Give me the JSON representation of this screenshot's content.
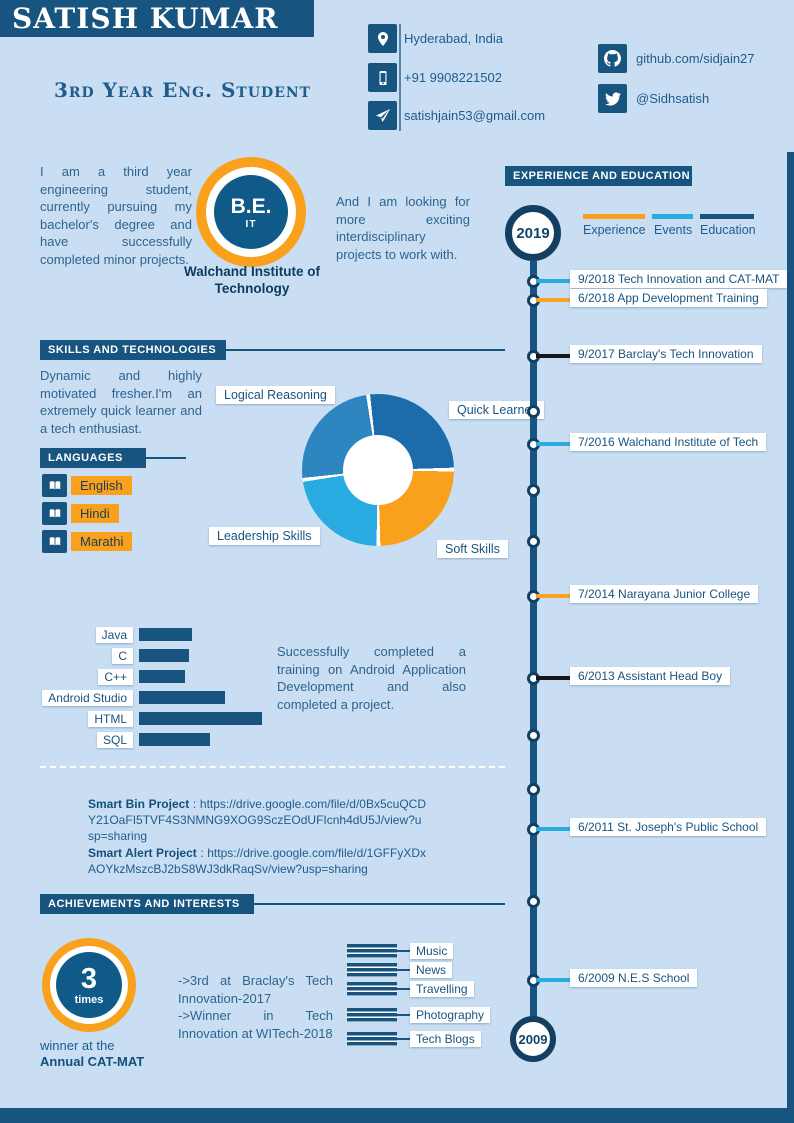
{
  "page": {
    "background": "#c9def2",
    "accent_dark": "#175480",
    "accent_orange": "#f9a11c",
    "accent_cyan": "#29aae1"
  },
  "header": {
    "name": "SATISH KUMAR",
    "subtitle": "3rd Year Eng. Student",
    "contacts": [
      {
        "icon": "location-icon",
        "text": "Hyderabad, India"
      },
      {
        "icon": "phone-icon",
        "text": "+91 9908221502"
      },
      {
        "icon": "email-icon",
        "text": "satishjain53@gmail.com"
      }
    ],
    "socials": [
      {
        "icon": "github-icon",
        "text": "github.com/sidjain27"
      },
      {
        "icon": "twitter-icon",
        "text": "@Sidhsatish"
      }
    ]
  },
  "profile": {
    "intro": "I am a third year engineering student, currently pursuing my bachelor's degree and have successfully completed minor projects.",
    "degree": "B.E.",
    "degree_field": "IT",
    "institute": "Walchand Institute of Technology",
    "outlook": "And I am looking for more exciting interdisciplinary projects to work with."
  },
  "sections": {
    "skills_title": "SKILLS AND TECHNOLOGIES",
    "languages_title": "LANGUAGES",
    "achievements_title": "ACHIEVEMENTS AND INTERESTS",
    "timeline_title": "EXPERIENCE AND EDUCATION"
  },
  "skills": {
    "description": "Dynamic and highly motivated fresher.I'm an extremely quick learner and a tech enthusiast."
  },
  "languages": {
    "items": [
      "English",
      "Hindi",
      "Marathi"
    ]
  },
  "android_note": "Successfully completed a training on Android Application Development and also completed a project.",
  "projects": [
    {
      "bold": "Smart Bin Project",
      "text": " : https://drive.google.com/file/d/0Bx5cuQCDY21OaFI5TVF4S3NMNG9XOG9SczEOdUFIcnh4dU5J/view?usp=sharing"
    },
    {
      "bold": "Smart Alert Project",
      "text": " : https://drive.google.com/file/d/1GFFyXDxAOYkzMszcBJ2bS8WJ3dkRaqSv/view?usp=sharing"
    }
  ],
  "achievements": {
    "count": "3",
    "count_unit": "times",
    "caption_1": "winner at the",
    "caption_2": "Annual CAT-MAT",
    "bullets": [
      "->3rd at Braclay's Tech Innovation-2017",
      "->Winner in Tech Innovation at WITech-2018"
    ]
  },
  "interests": [
    "Music",
    "News",
    "Travelling",
    "Photography",
    "Tech Blogs"
  ],
  "timeline": {
    "start_year": "2019",
    "end_year": "2009",
    "legend": [
      {
        "label": "Experience",
        "color": "#f9a11c"
      },
      {
        "label": "Events",
        "color": "#29aae1"
      },
      {
        "label": "Education",
        "color": "#175480"
      }
    ],
    "entries": [
      {
        "y": 281,
        "date": "9/2018",
        "label": "Tech Innovation and CAT-MAT",
        "color": "#29aae1"
      },
      {
        "y": 300,
        "date": "6/2018",
        "label": "App Development Training",
        "color": "#f9a11c"
      },
      {
        "y": 356,
        "date": "9/2017",
        "label": "Barclay's Tech Innovation",
        "color": "#14181c"
      },
      {
        "y": 411
      },
      {
        "y": 444,
        "date": "7/2016",
        "label": "Walchand Institute of Tech",
        "color": "#29aae1"
      },
      {
        "y": 490
      },
      {
        "y": 541
      },
      {
        "y": 596,
        "date": "7/2014",
        "label": "Narayana Junior College",
        "color": "#f9a11c"
      },
      {
        "y": 678,
        "date": "6/2013",
        "label": "Assistant Head Boy",
        "color": "#14181c"
      },
      {
        "y": 735
      },
      {
        "y": 789
      },
      {
        "y": 829,
        "date": "6/2011",
        "label": "St. Joseph's Public School",
        "color": "#29aae1"
      },
      {
        "y": 901
      },
      {
        "y": 980,
        "date": "6/2009",
        "label": "N.E.S School",
        "color": "#29aae1"
      }
    ]
  },
  "chart_data": [
    {
      "type": "pie",
      "subtype": "donut",
      "labels": [
        "Quick Learner",
        "Soft Skills",
        "Leadership Skills",
        "Logical Reasoning"
      ],
      "values": [
        27,
        25,
        23,
        25
      ],
      "colors": [
        "#1c6bab",
        "#f9a11c",
        "#29aae1",
        "#2e86c1"
      ],
      "legend_position": "callout-labels"
    },
    {
      "type": "bar",
      "orientation": "horizontal",
      "categories": [
        "Java",
        "C",
        "C++",
        "Android Studio",
        "HTML",
        "SQL"
      ],
      "values": [
        42,
        40,
        37,
        69,
        98,
        57
      ],
      "xlim": [
        0,
        100
      ],
      "color": "#175480",
      "grid": false
    }
  ]
}
